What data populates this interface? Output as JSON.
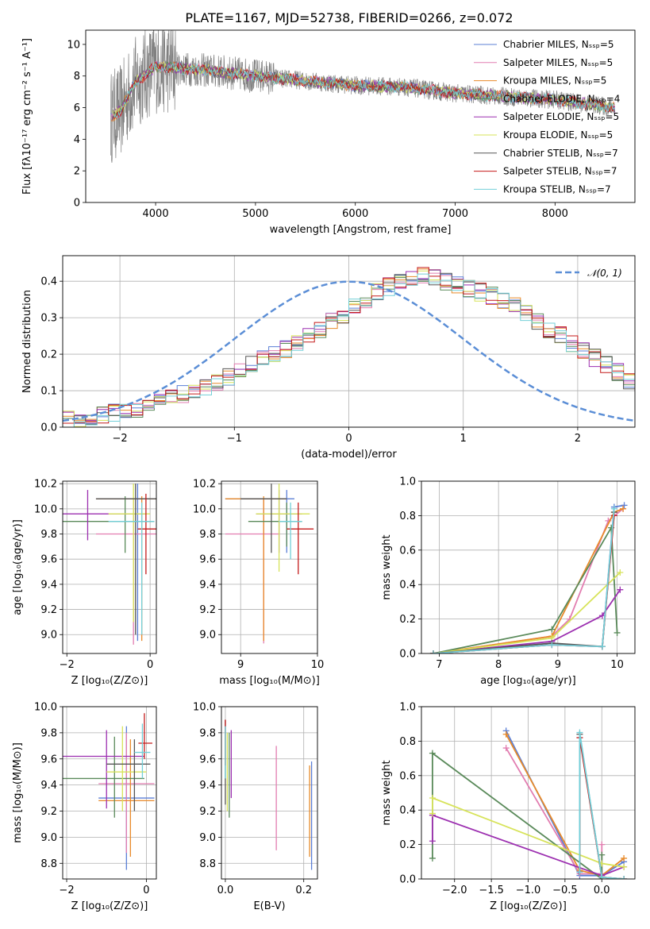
{
  "colors": [
    "#5b7fd6",
    "#e27db0",
    "#e88a2a",
    "#5a8a5a",
    "#9c2fb0",
    "#d7e35a",
    "#555555",
    "#c41a1a",
    "#73cfd8"
  ],
  "chart_data": [
    {
      "id": "spectrum",
      "type": "line",
      "title": "PLATE=1167, MJD=52738, FIBERID=0266, z=0.072",
      "xlabel": "wavelength [Angstrom, rest frame]",
      "ylabel": "Flux [fλ10⁻¹⁷ erg cm⁻² s⁻¹ A⁻¹]",
      "xlim": [
        3300,
        8800
      ],
      "ylim": [
        0,
        10.9
      ],
      "xticks": [
        4000,
        5000,
        6000,
        7000,
        8000
      ],
      "yticks": [
        0,
        2,
        4,
        6,
        8,
        10
      ],
      "continuum": [
        [
          3550,
          5.4
        ],
        [
          3650,
          5.8
        ],
        [
          3800,
          7.6
        ],
        [
          4000,
          8.6
        ],
        [
          4200,
          8.5
        ],
        [
          4600,
          8.3
        ],
        [
          5000,
          8.0
        ],
        [
          5500,
          7.7
        ],
        [
          6000,
          7.4
        ],
        [
          6500,
          7.3
        ],
        [
          7000,
          6.9
        ],
        [
          7500,
          6.7
        ],
        [
          8000,
          6.5
        ],
        [
          8600,
          6.0
        ]
      ],
      "legend": [
        "Chabrier MILES, Nₛₛₚ=5",
        "Salpeter MILES, Nₛₛₚ=5",
        "Kroupa MILES, Nₛₛₚ=5",
        "Chabrier ELODIE, Nₛₛₚ=4",
        "Salpeter ELODIE, Nₛₛₚ=5",
        "Kroupa ELODIE, Nₛₛₚ=5",
        "Chabrier STELIB, Nₛₛₚ=7",
        "Salpeter STELIB, Nₛₛₚ=7",
        "Kroupa STELIB, Nₛₛₚ=7"
      ],
      "legend_position": "top-right"
    },
    {
      "id": "residuals",
      "type": "line",
      "xlabel": "(data-model)/error",
      "ylabel": "Normed distribution",
      "xlim": [
        -2.5,
        2.5
      ],
      "ylim": [
        0,
        0.47
      ],
      "xticks": [
        -2,
        -1,
        0,
        1,
        2
      ],
      "yticks": [
        0.0,
        0.1,
        0.2,
        0.3,
        0.4
      ],
      "bin_width": 0.1,
      "bin_start": -2.5,
      "histogram_base": [
        0.02,
        0.025,
        0.03,
        0.035,
        0.04,
        0.045,
        0.05,
        0.06,
        0.07,
        0.08,
        0.09,
        0.1,
        0.11,
        0.125,
        0.14,
        0.155,
        0.17,
        0.185,
        0.2,
        0.215,
        0.23,
        0.25,
        0.27,
        0.29,
        0.31,
        0.33,
        0.35,
        0.37,
        0.385,
        0.4,
        0.41,
        0.42,
        0.41,
        0.4,
        0.39,
        0.38,
        0.37,
        0.36,
        0.35,
        0.33,
        0.31,
        0.29,
        0.27,
        0.25,
        0.23,
        0.21,
        0.19,
        0.17,
        0.15,
        0.13,
        0.11,
        0.095,
        0.08,
        0.07,
        0.06,
        0.055,
        0.05,
        0.045,
        0.04,
        0.035
      ],
      "normal_curve_label": "𝒩(0, 1)",
      "legend_position": "top-right"
    },
    {
      "id": "age-vs-Z",
      "type": "scatter",
      "xlabel": "Z [log₁₀(Z/Z⊙)]",
      "ylabel": "age  [log₁₀(age/yr)]",
      "xlim": [
        -2.1,
        0.15
      ],
      "ylim": [
        8.85,
        10.22
      ],
      "xticks": [
        -2,
        0
      ],
      "yticks": [
        9.0,
        9.2,
        9.4,
        9.6,
        9.8,
        10.0,
        10.2
      ],
      "points": [
        {
          "x": -0.3,
          "y": 10.08,
          "xlo": -1.3,
          "xhi": 0.3,
          "ylo": 8.95,
          "yhi": 10.2
        },
        {
          "x": -0.4,
          "y": 9.8,
          "xlo": -1.3,
          "xhi": 0.3,
          "ylo": 8.92,
          "yhi": 10.08
        },
        {
          "x": -0.2,
          "y": 10.08,
          "xlo": -1.3,
          "xhi": 0.3,
          "ylo": 8.95,
          "yhi": 10.1
        },
        {
          "x": -0.6,
          "y": 9.9,
          "xlo": -2.1,
          "xhi": 0.1,
          "ylo": 9.65,
          "yhi": 10.1
        },
        {
          "x": -1.5,
          "y": 9.96,
          "xlo": -2.1,
          "xhi": -0.1,
          "ylo": 9.75,
          "yhi": 10.15
        },
        {
          "x": -0.4,
          "y": 9.96,
          "xlo": -1.0,
          "xhi": 0.0,
          "ylo": 9.1,
          "yhi": 10.2
        },
        {
          "x": -0.35,
          "y": 10.08,
          "xlo": -1.3,
          "xhi": 0.3,
          "ylo": 9.0,
          "yhi": 10.2
        },
        {
          "x": -0.1,
          "y": 9.84,
          "xlo": -0.3,
          "xhi": 0.2,
          "ylo": 9.48,
          "yhi": 10.12
        },
        {
          "x": -0.2,
          "y": 9.9,
          "xlo": -1.0,
          "xhi": 0.1,
          "ylo": 9.0,
          "yhi": 10.05
        }
      ]
    },
    {
      "id": "age-vs-mass",
      "type": "scatter",
      "xlabel": "mass [log₁₀(M/M⊙)]",
      "ylabel": "",
      "xlim": [
        8.75,
        10.0
      ],
      "ylim": [
        8.85,
        10.22
      ],
      "xticks": [
        9,
        10
      ],
      "yticks": [
        9.0,
        9.2,
        9.4,
        9.6,
        9.8,
        10.0,
        10.2
      ],
      "points": [
        {
          "x": 9.6,
          "y": 10.08,
          "xlo": 8.8,
          "xhi": 9.7,
          "ylo": 9.65,
          "yhi": 10.15
        },
        {
          "x": 9.3,
          "y": 9.8,
          "xlo": 8.8,
          "xhi": 9.5,
          "ylo": 8.93,
          "yhi": 10.08
        },
        {
          "x": 9.3,
          "y": 10.08,
          "xlo": 8.8,
          "xhi": 9.6,
          "ylo": 8.95,
          "yhi": 10.1
        },
        {
          "x": 9.6,
          "y": 9.9,
          "xlo": 9.1,
          "xhi": 9.8,
          "ylo": 9.7,
          "yhi": 10.05
        },
        {
          "x": 9.5,
          "y": 9.96,
          "xlo": 9.2,
          "xhi": 9.8,
          "ylo": 9.65,
          "yhi": 10.15
        },
        {
          "x": 9.5,
          "y": 9.96,
          "xlo": 9.2,
          "xhi": 9.9,
          "ylo": 9.5,
          "yhi": 10.2
        },
        {
          "x": 9.4,
          "y": 10.08,
          "xlo": 9.0,
          "xhi": 9.6,
          "ylo": 9.65,
          "yhi": 10.2
        },
        {
          "x": 9.75,
          "y": 9.84,
          "xlo": 9.6,
          "xhi": 9.95,
          "ylo": 9.48,
          "yhi": 10.05
        },
        {
          "x": 9.65,
          "y": 9.9,
          "xlo": 9.5,
          "xhi": 9.8,
          "ylo": 9.6,
          "yhi": 10.05
        }
      ]
    },
    {
      "id": "mass-weight-vs-age",
      "type": "line",
      "xlabel": "age  [log₁₀(age/yr)]",
      "ylabel": "mass weight",
      "xlim": [
        6.7,
        10.3
      ],
      "ylim": [
        0,
        1.0
      ],
      "xticks": [
        7,
        8,
        9,
        10
      ],
      "yticks": [
        0.0,
        0.2,
        0.4,
        0.6,
        0.8,
        1.0
      ],
      "series": [
        {
          "x": [
            6.9,
            8.9,
            9.75,
            9.95,
            10.12
          ],
          "y": [
            0.0,
            0.05,
            0.04,
            0.85,
            0.86
          ]
        },
        {
          "x": [
            6.9,
            8.9,
            9.2,
            9.85,
            10.1
          ],
          "y": [
            0.0,
            0.1,
            0.2,
            0.77,
            0.84
          ]
        },
        {
          "x": [
            6.9,
            8.9,
            9.95,
            10.1
          ],
          "y": [
            0.0,
            0.1,
            0.82,
            0.84
          ]
        },
        {
          "x": [
            6.9,
            8.9,
            9.9,
            10.0
          ],
          "y": [
            0.0,
            0.14,
            0.73,
            0.12
          ]
        },
        {
          "x": [
            6.9,
            8.9,
            9.75,
            10.05
          ],
          "y": [
            0.0,
            0.07,
            0.22,
            0.37
          ]
        },
        {
          "x": [
            6.9,
            8.9,
            10.05
          ],
          "y": [
            0.0,
            0.09,
            0.47
          ]
        },
        {
          "x": [
            6.9,
            8.9,
            9.75,
            9.95
          ],
          "y": [
            0.0,
            0.06,
            0.04,
            0.82
          ]
        },
        {
          "x": [
            6.9,
            8.9,
            9.75,
            9.95
          ],
          "y": [
            0.0,
            0.05,
            0.04,
            0.8
          ]
        },
        {
          "x": [
            6.9,
            8.9,
            9.75,
            9.95
          ],
          "y": [
            0.0,
            0.05,
            0.04,
            0.84
          ]
        }
      ]
    },
    {
      "id": "mass-vs-Z",
      "type": "scatter",
      "xlabel": "Z [log₁₀(Z/Z⊙)]",
      "ylabel": "mass [log₁₀(M/M⊙)]",
      "xlim": [
        -2.1,
        0.25
      ],
      "ylim": [
        8.68,
        10.0
      ],
      "xticks": [
        -2,
        0
      ],
      "yticks": [
        8.8,
        9.0,
        9.2,
        9.4,
        9.6,
        9.8,
        10.0
      ],
      "points": [
        {
          "x": -0.5,
          "y": 9.3,
          "xlo": -1.2,
          "xhi": 0.2,
          "ylo": 8.75,
          "yhi": 9.85
        },
        {
          "x": -0.5,
          "y": 9.41,
          "xlo": -1.2,
          "xhi": 0.2,
          "ylo": 8.88,
          "yhi": 9.8
        },
        {
          "x": -0.4,
          "y": 9.28,
          "xlo": -1.2,
          "xhi": 0.2,
          "ylo": 8.85,
          "yhi": 9.75
        },
        {
          "x": -0.8,
          "y": 9.45,
          "xlo": -2.1,
          "xhi": -0.05,
          "ylo": 9.15,
          "yhi": 9.77
        },
        {
          "x": -1.0,
          "y": 9.62,
          "xlo": -2.1,
          "xhi": -0.05,
          "ylo": 9.22,
          "yhi": 9.82
        },
        {
          "x": -0.6,
          "y": 9.5,
          "xlo": -1.0,
          "xhi": 0.0,
          "ylo": 9.2,
          "yhi": 9.85
        },
        {
          "x": -0.3,
          "y": 9.56,
          "xlo": -1.0,
          "xhi": 0.1,
          "ylo": 9.2,
          "yhi": 9.75
        },
        {
          "x": -0.05,
          "y": 9.72,
          "xlo": -0.2,
          "xhi": 0.15,
          "ylo": 9.6,
          "yhi": 9.95
        },
        {
          "x": -0.1,
          "y": 9.65,
          "xlo": -0.3,
          "xhi": 0.1,
          "ylo": 9.45,
          "yhi": 9.87
        }
      ]
    },
    {
      "id": "mass-vs-EBV",
      "type": "scatter",
      "xlabel": "E(B-V)",
      "ylabel": "",
      "xlim": [
        -0.01,
        0.235
      ],
      "ylim": [
        8.68,
        10.0
      ],
      "xticks": [
        0.0,
        0.2
      ],
      "yticks": [
        8.8,
        9.0,
        9.2,
        9.4,
        9.6,
        9.8,
        10.0
      ],
      "points": [
        {
          "x": 0.22,
          "y": 9.3,
          "ylo": 8.75,
          "yhi": 9.58
        },
        {
          "x": 0.13,
          "y": 9.41,
          "ylo": 8.9,
          "yhi": 9.7
        },
        {
          "x": 0.215,
          "y": 9.28,
          "ylo": 8.85,
          "yhi": 9.55
        },
        {
          "x": 0.01,
          "y": 9.45,
          "ylo": 9.15,
          "yhi": 9.8
        },
        {
          "x": 0.015,
          "y": 9.62,
          "ylo": 9.3,
          "yhi": 9.82
        },
        {
          "x": 0.005,
          "y": 9.5,
          "ylo": 9.2,
          "yhi": 9.8
        },
        {
          "x": 0.0,
          "y": 9.56,
          "ylo": 9.25,
          "yhi": 9.9
        },
        {
          "x": 0.0,
          "y": 9.72,
          "ylo": 9.55,
          "yhi": 9.9
        },
        {
          "x": 0.0,
          "y": 9.65,
          "ylo": 9.45,
          "yhi": 9.85
        }
      ]
    },
    {
      "id": "mass-weight-vs-Z",
      "type": "line",
      "xlabel": "Z [log₁₀(Z/Z⊙)]",
      "ylabel": "mass weight",
      "xlim": [
        -2.45,
        0.45
      ],
      "ylim": [
        0,
        1.0
      ],
      "xticks": [
        -2.0,
        -1.5,
        -1.0,
        -0.5,
        0.0
      ],
      "yticks": [
        0.0,
        0.2,
        0.4,
        0.6,
        0.8,
        1.0
      ],
      "series": [
        {
          "x": [
            -1.3,
            -0.3,
            0.0,
            0.3
          ],
          "y": [
            0.86,
            0.02,
            0.02,
            0.1
          ]
        },
        {
          "x": [
            -1.3,
            -0.3,
            0.0,
            0.0
          ],
          "y": [
            0.76,
            0.03,
            0.03,
            0.2
          ]
        },
        {
          "x": [
            -1.3,
            -0.3,
            0.0,
            0.3
          ],
          "y": [
            0.84,
            0.05,
            0.02,
            0.12
          ]
        },
        {
          "x": [
            -2.3,
            -2.3,
            0.0,
            0.0
          ],
          "y": [
            0.12,
            0.73,
            0.0,
            0.14
          ]
        },
        {
          "x": [
            -2.3,
            -2.3,
            0.0,
            0.3
          ],
          "y": [
            0.22,
            0.37,
            0.02,
            0.07
          ]
        },
        {
          "x": [
            -2.3,
            -2.3,
            0.0,
            0.3
          ],
          "y": [
            0.38,
            0.47,
            0.09,
            0.07
          ]
        },
        {
          "x": [
            -0.3,
            -0.3,
            0.0,
            0.3
          ],
          "y": [
            0.04,
            0.84,
            0.01,
            0.0
          ]
        },
        {
          "x": [
            -0.3,
            -0.3,
            0.0,
            0.3
          ],
          "y": [
            0.04,
            0.82,
            0.01,
            0.0
          ]
        },
        {
          "x": [
            -0.3,
            -0.3,
            0.0,
            0.3
          ],
          "y": [
            0.04,
            0.85,
            0.01,
            0.0
          ]
        }
      ]
    }
  ]
}
